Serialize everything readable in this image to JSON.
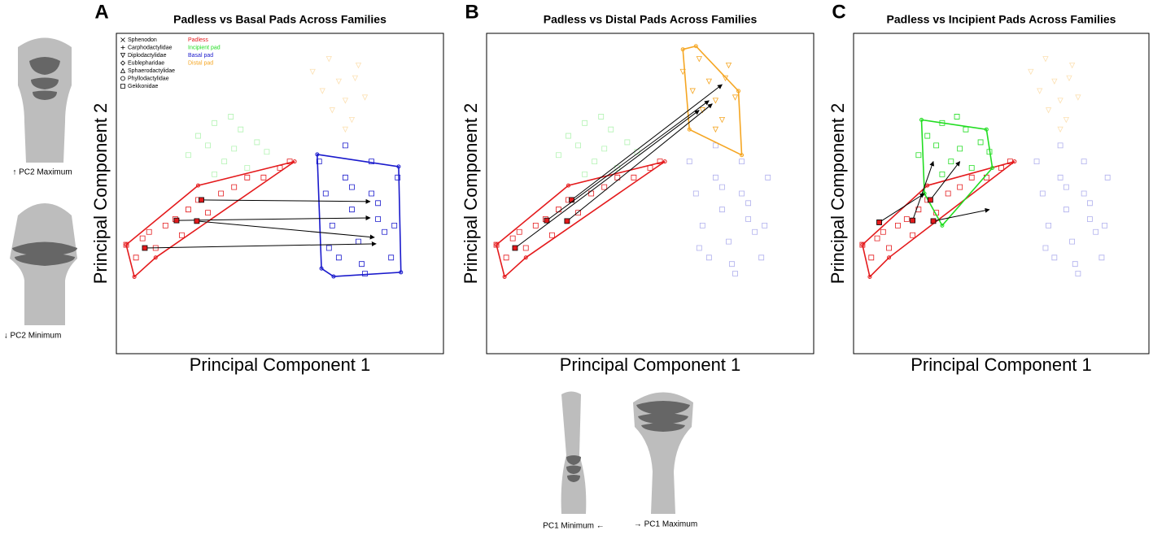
{
  "chart_data": [
    {
      "type": "scatter",
      "panel": "A",
      "title": "Padless vs Basal Pads Across Families",
      "x_label": "Principal Component 1",
      "y_label": "Principal Component 2",
      "xlim": [
        0,
        100
      ],
      "ylim": [
        0,
        100
      ],
      "legend_families": [
        {
          "label": "Sphenodon",
          "marker": "x"
        },
        {
          "label": "Carphodactylidae",
          "marker": "plus"
        },
        {
          "label": "Diplodactylidae",
          "marker": "triangle-down"
        },
        {
          "label": "Eublepharidae",
          "marker": "diamond"
        },
        {
          "label": "Sphaerodactylidae",
          "marker": "triangle"
        },
        {
          "label": "Phyllodactylidae",
          "marker": "circle"
        },
        {
          "label": "Gekkonidae",
          "marker": "square"
        }
      ],
      "series": [
        {
          "name": "Padless",
          "color": "#e41a1c",
          "alpha": 1,
          "marker": "square",
          "x": [
            3,
            6,
            8,
            10,
            12,
            15,
            18,
            20,
            22,
            25,
            28,
            32,
            36,
            40,
            45,
            50,
            53
          ],
          "y": [
            34,
            30,
            36,
            38,
            33,
            40,
            42,
            37,
            45,
            48,
            44,
            50,
            52,
            55,
            55,
            58,
            60
          ]
        },
        {
          "name": "Incipient pad",
          "color": "#22dd22",
          "alpha": 0.35,
          "marker": "square",
          "x": [
            22,
            25,
            28,
            30,
            33,
            36,
            38,
            40,
            43,
            46,
            30,
            35
          ],
          "y": [
            62,
            68,
            65,
            72,
            60,
            64,
            70,
            58,
            66,
            63,
            56,
            74
          ]
        },
        {
          "name": "Basal pad",
          "color": "#1a1acc",
          "alpha": 1,
          "marker": "square",
          "x": [
            62,
            64,
            66,
            68,
            70,
            72,
            74,
            76,
            78,
            80,
            82,
            84,
            86,
            70,
            75,
            80,
            65,
            72,
            78,
            85
          ],
          "y": [
            60,
            50,
            40,
            30,
            55,
            45,
            35,
            25,
            50,
            42,
            38,
            30,
            55,
            65,
            28,
            47,
            33,
            52,
            60,
            40
          ]
        },
        {
          "name": "Distal pad",
          "color": "#f5a623",
          "alpha": 0.35,
          "marker": "triangle-down",
          "x": [
            60,
            63,
            66,
            68,
            70,
            72,
            74,
            76,
            65,
            70,
            73
          ],
          "y": [
            88,
            82,
            76,
            85,
            79,
            73,
            90,
            80,
            92,
            70,
            86
          ]
        }
      ],
      "hulls": [
        {
          "color": "#e41a1c",
          "x": [
            3,
            5.5,
            12,
            54.5,
            25
          ],
          "y": [
            34,
            24,
            30,
            60,
            52.5
          ]
        },
        {
          "color": "#1a1acc",
          "x": [
            61.4,
            86.3,
            87,
            66.4,
            62.7
          ],
          "y": [
            62.2,
            58.4,
            25.4,
            24.1,
            26.6
          ]
        }
      ],
      "arrows": [
        {
          "x": [
            26,
            77.6
          ],
          "y": [
            48,
            47.5
          ]
        },
        {
          "x": [
            18.4,
            77.6
          ],
          "y": [
            41.6,
            42.4
          ]
        },
        {
          "x": [
            24.6,
            78.9
          ],
          "y": [
            41.4,
            36.3
          ]
        },
        {
          "x": [
            8.7,
            79.4
          ],
          "y": [
            33,
            34.3
          ]
        }
      ]
    },
    {
      "type": "scatter",
      "panel": "B",
      "title": "Padless vs Distal Pads Across Families",
      "x_label": "Principal Component 1",
      "y_label": "Principal Component 2",
      "xlim": [
        0,
        100
      ],
      "ylim": [
        0,
        100
      ],
      "series": [
        {
          "name": "Padless",
          "color": "#e41a1c",
          "alpha": 1,
          "marker": "square",
          "x": [
            3,
            6,
            8,
            10,
            12,
            15,
            18,
            20,
            22,
            25,
            28,
            32,
            36,
            40,
            45,
            50,
            53
          ],
          "y": [
            34,
            30,
            36,
            38,
            33,
            40,
            42,
            37,
            45,
            48,
            44,
            50,
            52,
            55,
            55,
            58,
            60
          ]
        },
        {
          "name": "Incipient pad",
          "color": "#22dd22",
          "alpha": 0.35,
          "marker": "square",
          "x": [
            22,
            25,
            28,
            30,
            33,
            36,
            38,
            40,
            43,
            46,
            30,
            35
          ],
          "y": [
            62,
            68,
            65,
            72,
            60,
            64,
            70,
            58,
            66,
            63,
            56,
            74
          ]
        },
        {
          "name": "Basal pad",
          "color": "#1a1acc",
          "alpha": 0.35,
          "marker": "square",
          "x": [
            62,
            64,
            66,
            68,
            70,
            72,
            74,
            76,
            78,
            80,
            82,
            84,
            86,
            70,
            75,
            80,
            65,
            72,
            78,
            85
          ],
          "y": [
            60,
            50,
            40,
            30,
            55,
            45,
            35,
            25,
            50,
            42,
            38,
            30,
            55,
            65,
            28,
            47,
            33,
            52,
            60,
            40
          ]
        },
        {
          "name": "Distal pad",
          "color": "#f5a623",
          "alpha": 1,
          "marker": "triangle-down",
          "x": [
            60,
            63,
            66,
            68,
            70,
            72,
            74,
            76,
            65,
            70,
            73
          ],
          "y": [
            88,
            82,
            76,
            85,
            79,
            73,
            90,
            80,
            92,
            70,
            86
          ]
        }
      ],
      "hulls": [
        {
          "color": "#e41a1c",
          "x": [
            3,
            5.5,
            12,
            54.5,
            25
          ],
          "y": [
            34,
            24,
            30,
            60,
            52.5
          ]
        },
        {
          "color": "#f5a623",
          "x": [
            60,
            64,
            77,
            78,
            62
          ],
          "y": [
            95,
            96,
            82,
            62,
            70
          ]
        }
      ],
      "arrows": [
        {
          "x": [
            26,
            72
          ],
          "y": [
            48,
            84
          ]
        },
        {
          "x": [
            18.4,
            68
          ],
          "y": [
            41.6,
            79
          ]
        },
        {
          "x": [
            24.6,
            69
          ],
          "y": [
            41.4,
            78
          ]
        },
        {
          "x": [
            8.7,
            65
          ],
          "y": [
            33,
            76
          ]
        }
      ]
    },
    {
      "type": "scatter",
      "panel": "C",
      "title": "Padless vs Incipient Pads Across Families",
      "x_label": "Principal Component 1",
      "y_label": "Principal Component 2",
      "xlim": [
        0,
        100
      ],
      "ylim": [
        0,
        100
      ],
      "series": [
        {
          "name": "Padless",
          "color": "#e41a1c",
          "alpha": 1,
          "marker": "square",
          "x": [
            3,
            6,
            8,
            10,
            12,
            15,
            18,
            20,
            22,
            25,
            28,
            32,
            36,
            40,
            45,
            50,
            53
          ],
          "y": [
            34,
            30,
            36,
            38,
            33,
            40,
            42,
            37,
            45,
            48,
            44,
            50,
            52,
            55,
            55,
            58,
            60
          ]
        },
        {
          "name": "Incipient pad",
          "color": "#22dd22",
          "alpha": 1,
          "marker": "square",
          "x": [
            22,
            25,
            28,
            30,
            33,
            36,
            38,
            40,
            43,
            46,
            30,
            35
          ],
          "y": [
            62,
            68,
            65,
            72,
            60,
            64,
            70,
            58,
            66,
            63,
            56,
            74
          ]
        },
        {
          "name": "Basal pad",
          "color": "#1a1acc",
          "alpha": 0.35,
          "marker": "square",
          "x": [
            62,
            64,
            66,
            68,
            70,
            72,
            74,
            76,
            78,
            80,
            82,
            84,
            86,
            70,
            75,
            80,
            65,
            72,
            78,
            85
          ],
          "y": [
            60,
            50,
            40,
            30,
            55,
            45,
            35,
            25,
            50,
            42,
            38,
            30,
            55,
            65,
            28,
            47,
            33,
            52,
            60,
            40
          ]
        },
        {
          "name": "Distal pad",
          "color": "#f5a623",
          "alpha": 0.35,
          "marker": "triangle-down",
          "x": [
            60,
            63,
            66,
            68,
            70,
            72,
            74,
            76,
            65,
            70,
            73
          ],
          "y": [
            88,
            82,
            76,
            85,
            79,
            73,
            90,
            80,
            92,
            70,
            86
          ]
        }
      ],
      "hulls": [
        {
          "color": "#e41a1c",
          "x": [
            3,
            5.5,
            12,
            54.5,
            25
          ],
          "y": [
            34,
            24,
            30,
            60,
            52.5
          ]
        },
        {
          "color": "#22dd22",
          "x": [
            23,
            45,
            47,
            30,
            24
          ],
          "y": [
            73,
            70,
            58,
            40,
            50
          ]
        }
      ],
      "arrows": [
        {
          "x": [
            26,
            36
          ],
          "y": [
            48,
            60
          ]
        },
        {
          "x": [
            20,
            27
          ],
          "y": [
            41.6,
            60
          ]
        },
        {
          "x": [
            27,
            46
          ],
          "y": [
            41.4,
            45
          ]
        },
        {
          "x": [
            8.7,
            24
          ],
          "y": [
            41,
            50
          ]
        }
      ]
    }
  ],
  "side_labels": {
    "pc2_max": "↑ PC2 Maximum",
    "pc2_min": "↓ PC2 Minimum",
    "pc1_min": "PC1 Minimum ←",
    "pc1_max": "→ PC1 Maximum"
  }
}
